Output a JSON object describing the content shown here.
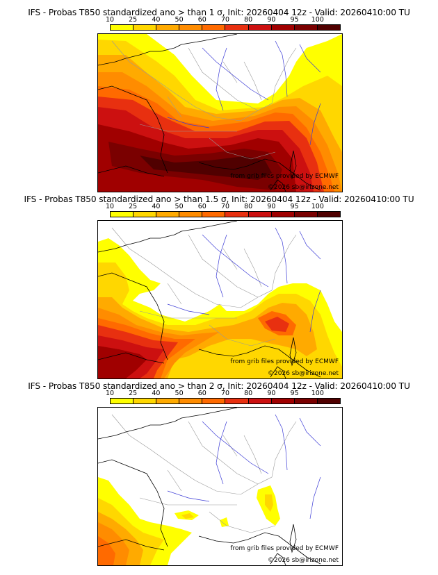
{
  "colors": {
    "c10": "#ffff00",
    "c25": "#ffd700",
    "c40": "#ffaa00",
    "c50": "#ff8c00",
    "c60": "#ff6a00",
    "c70": "#e83010",
    "c80": "#cc1010",
    "c90": "#a00000",
    "c95": "#7a0000",
    "c100": "#500000",
    "coast": "#000000",
    "rivers": "#3b3bd6",
    "borders": "#999999"
  },
  "colorbar_labels": [
    "10",
    "25",
    "40",
    "50",
    "60",
    "70",
    "80",
    "90",
    "95",
    "100"
  ],
  "panels": [
    {
      "title": "IFS - Probas T850  standardized ano > than 1 σ, Init: 20260404 12z - Valid: 20260410:00 TU",
      "credit_source": "from grib files provided by ECMWF",
      "credit_copyright": "©2026 sb@irizone.net"
    },
    {
      "title": "IFS - Probas T850  standardized ano > than 1.5 σ, Init: 20260404 12z - Valid: 20260410:00 TU",
      "credit_source": "from grib files provided by ECMWF",
      "credit_copyright": "©2026 sb@irizone.net"
    },
    {
      "title": "IFS - Probas T850  standardized ano > than 2 σ, Init: 20260404 12z - Valid: 20260410:00 TU",
      "credit_source": "from grib files provided by ECMWF",
      "credit_copyright": "©2026 sb@irizone.net"
    }
  ]
}
